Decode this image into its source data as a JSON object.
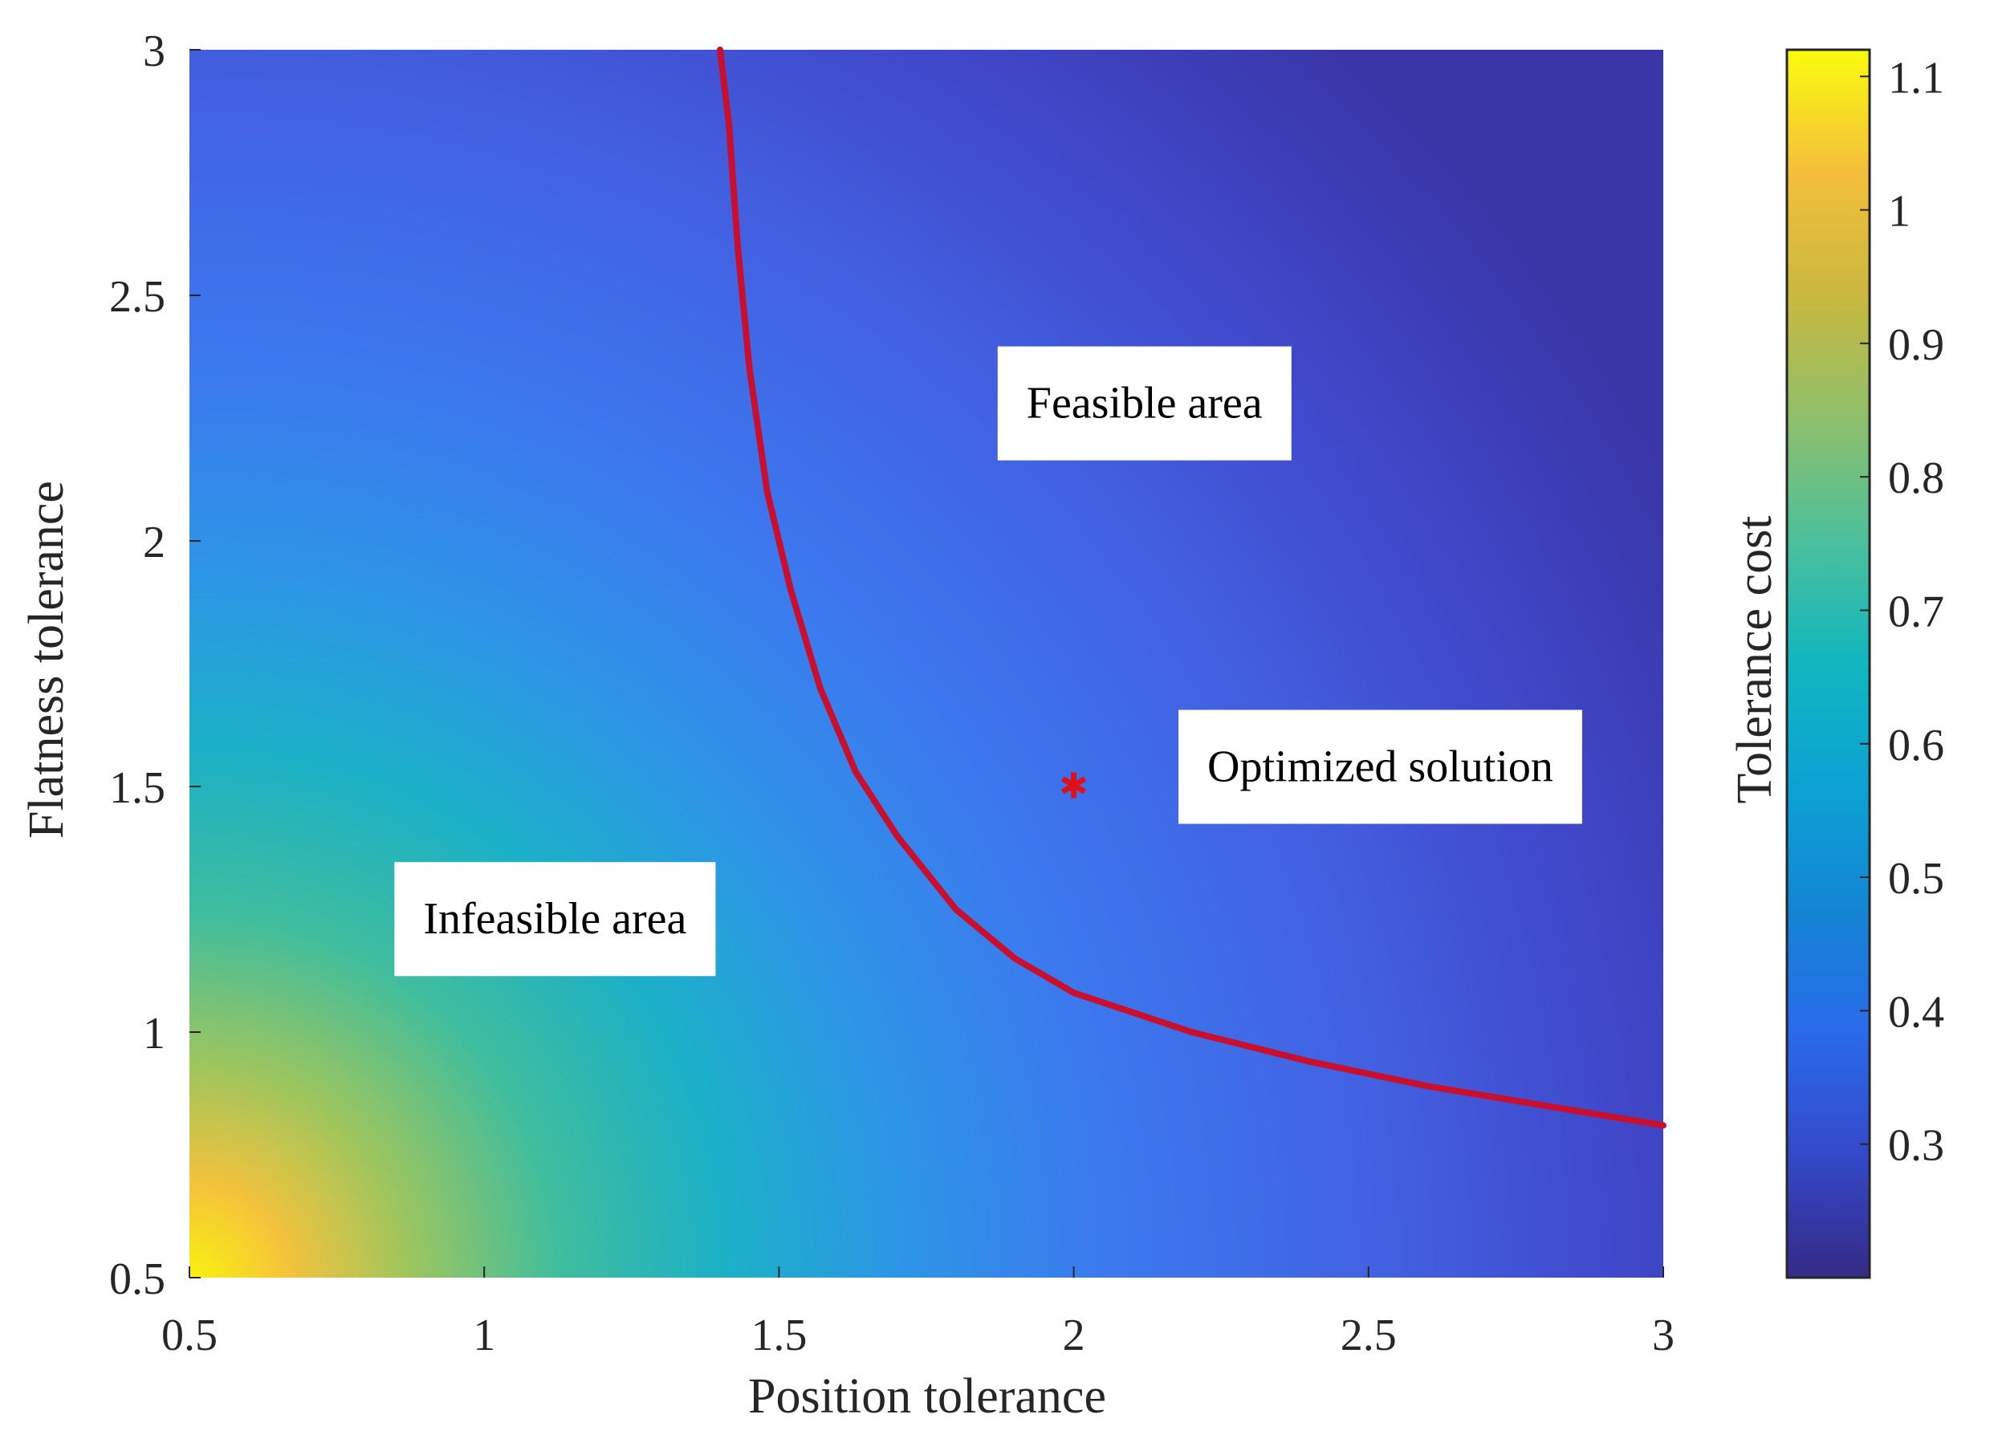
{
  "chart_data": {
    "type": "heatmap",
    "title": "",
    "xlabel": "Position tolerance",
    "ylabel": "Flatness tolerance",
    "colorbar_label": "Tolerance cost",
    "xlim": [
      0.5,
      3
    ],
    "ylim": [
      0.5,
      3
    ],
    "clim": [
      0.2,
      1.12
    ],
    "xticks": [
      "0.5",
      "1",
      "1.5",
      "2",
      "2.5",
      "3"
    ],
    "yticks": [
      "0.5",
      "1",
      "1.5",
      "2",
      "2.5",
      "3"
    ],
    "colorbar_ticks": [
      "0.3",
      "0.4",
      "0.5",
      "0.6",
      "0.7",
      "0.8",
      "0.9",
      "1",
      "1.1"
    ],
    "colormap": "parula",
    "cost_surface_samples": [
      {
        "x": 0.5,
        "y": 0.5,
        "cost": 1.12
      },
      {
        "x": 1.0,
        "y": 1.0,
        "cost": 0.62
      },
      {
        "x": 1.5,
        "y": 1.5,
        "cost": 0.45
      },
      {
        "x": 2.0,
        "y": 1.5,
        "cost": 0.36
      },
      {
        "x": 3.0,
        "y": 3.0,
        "cost": 0.21
      }
    ],
    "boundary_curve": {
      "name": "feasibility boundary",
      "color": "#c8102e",
      "points": [
        [
          1.4,
          3.0
        ],
        [
          1.415,
          2.85
        ],
        [
          1.43,
          2.6
        ],
        [
          1.45,
          2.35
        ],
        [
          1.48,
          2.1
        ],
        [
          1.52,
          1.9
        ],
        [
          1.57,
          1.7
        ],
        [
          1.63,
          1.53
        ],
        [
          1.7,
          1.4
        ],
        [
          1.8,
          1.25
        ],
        [
          1.9,
          1.15
        ],
        [
          2.0,
          1.08
        ],
        [
          2.2,
          1.0
        ],
        [
          2.4,
          0.94
        ],
        [
          2.6,
          0.89
        ],
        [
          2.8,
          0.85
        ],
        [
          3.0,
          0.81
        ]
      ]
    },
    "optimized_point": {
      "x": 2.0,
      "y": 1.5,
      "marker": "*",
      "color": "#e0101a"
    },
    "annotations": [
      {
        "text": "Feasible area",
        "x": 2.12,
        "y": 2.28
      },
      {
        "text": "Optimized  solution",
        "x": 2.52,
        "y": 1.54
      },
      {
        "text": "Infeasible area",
        "x": 1.12,
        "y": 1.23
      }
    ]
  }
}
